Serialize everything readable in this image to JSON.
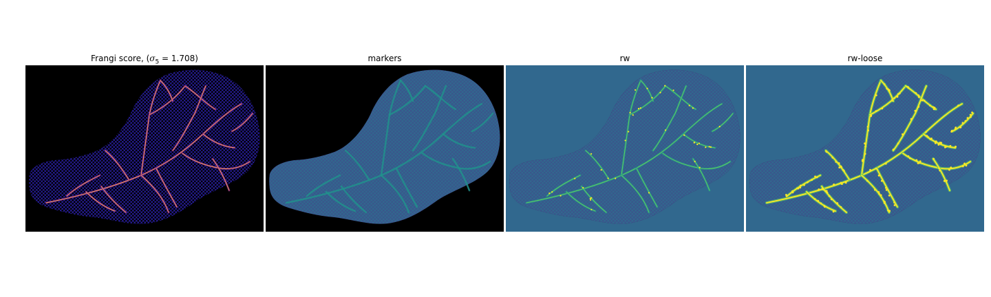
{
  "panels": [
    {
      "title_prefix": "Frangi score, (",
      "title_symbol": "σ",
      "title_subscript": "5",
      "title_suffix": " = 1.708)",
      "image": "vessel-frangi-heatmap"
    },
    {
      "title": "markers",
      "image": "vessel-markers-map"
    },
    {
      "title": "rw",
      "image": "vessel-random-walker-segmentation"
    },
    {
      "title": "rw-loose",
      "image": "vessel-random-walker-loose-segmentation"
    }
  ],
  "colors": {
    "frangi_background": "#000000",
    "frangi_tissue": "#1a0c6b",
    "frangi_vessel_dim": "#7a1f8c",
    "frangi_vessel_bright": "#f9a35b",
    "viridis_background": "#31688e",
    "viridis_tissue": "#440154",
    "viridis_mesh": "#3b528b",
    "viridis_vessel": "#21918c",
    "viridis_vessel_light": "#5ec962",
    "viridis_highlight": "#fde725"
  }
}
